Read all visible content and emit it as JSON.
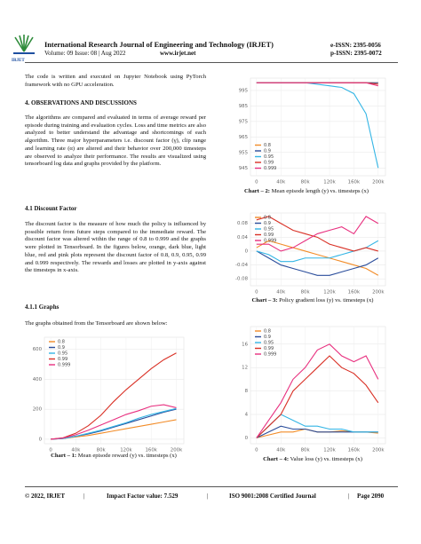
{
  "header": {
    "logo_text": "IRJET",
    "journal": "International Research Journal of Engineering and Technology (IRJET)",
    "volume": "Volume: 09 Issue: 08 | Aug 2022",
    "website": "www.irjet.net",
    "eissn": "e-ISSN: 2395-0056",
    "pissn": "p-ISSN: 2395-0072"
  },
  "left": {
    "intro": "The code is written and executed on Jupyter Notebook using PyTorch framework with no GPU acceleration.",
    "section4_title": "4. OBSERVATIONS AND DISCUSSIONS",
    "section4_text": "The algorithms are compared and evaluated in terms of average reward per episode during training and evaluation cycles. Loss and time metrics are also analyzed to better understand the advantage and shortcomings of each algorithm. Three major hyperparameters i.e. discount factor (γ), clip range and learning rate (α) are altered and their behavior over 200,000 timesteps are observed to analyze their performance. The results are visualized using tensorboard log data and graphs provided by the platform.",
    "section41_title": "4.1 Discount Factor",
    "section41_text": "The discount factor is the measure of how much the policy is influenced by possible return from future steps compared to the immediate reward. The discount factor was altered within the range of 0.8 to 0.999 and the graphs were plotted in Tensorboard. In the figures below, orange, dark blue, light blue, red and pink plots represent the discount factor of 0.8, 0.9, 0.95, 0.99 and 0.999 respectively. The rewards and losses are plotted in y-axis against the timesteps in x-axis.",
    "section411_title": "4.1.1 Graphs",
    "graphs_intro": "The graphs obtained from the Tensorboard are shown below:"
  },
  "chart_data": [
    {
      "type": "line",
      "caption_label": "Chart – 1:",
      "caption_text": "Mean episode reward (y) vs. timesteps (x)",
      "x": [
        0,
        20000,
        40000,
        60000,
        80000,
        100000,
        120000,
        140000,
        160000,
        180000,
        200000
      ],
      "xlim": [
        -10000,
        212000
      ],
      "xticks": [
        0,
        {
          "value": 40000,
          "label": "40k"
        },
        {
          "value": 80000,
          "label": "80k"
        },
        {
          "value": 120000,
          "label": "120k"
        },
        {
          "value": 160000,
          "label": "160k"
        },
        {
          "value": 200000,
          "label": "200k"
        }
      ],
      "ylim": [
        -30,
        680
      ],
      "yticks": [
        0,
        200,
        400,
        600
      ],
      "grid": true,
      "legend": "top-left",
      "series": [
        {
          "name": "0.8",
          "color": "#f28c28",
          "values": [
            0,
            5,
            15,
            25,
            40,
            55,
            70,
            85,
            100,
            115,
            130
          ]
        },
        {
          "name": "0.9",
          "color": "#2a4d9b",
          "values": [
            0,
            5,
            20,
            35,
            55,
            80,
            105,
            130,
            155,
            180,
            200
          ]
        },
        {
          "name": "0.95",
          "color": "#33b5e5",
          "values": [
            0,
            5,
            20,
            40,
            60,
            85,
            110,
            140,
            165,
            185,
            205
          ]
        },
        {
          "name": "0.99",
          "color": "#d93025",
          "values": [
            0,
            10,
            40,
            90,
            160,
            250,
            330,
            400,
            470,
            530,
            575
          ]
        },
        {
          "name": "0.999",
          "color": "#e8307f",
          "values": [
            0,
            8,
            30,
            60,
            95,
            130,
            165,
            190,
            220,
            230,
            210
          ]
        }
      ]
    },
    {
      "type": "line",
      "caption_label": "Chart – 2:",
      "caption_text": "Mean episode length (y) vs. timesteps (x)",
      "x": [
        0,
        20000,
        40000,
        60000,
        80000,
        100000,
        120000,
        140000,
        160000,
        180000,
        200000
      ],
      "xlim": [
        -10000,
        212000
      ],
      "xticks": [
        0,
        {
          "value": 40000,
          "label": "40k"
        },
        {
          "value": 80000,
          "label": "80k"
        },
        {
          "value": 120000,
          "label": "120k"
        },
        {
          "value": 160000,
          "label": "160k"
        },
        {
          "value": 200000,
          "label": "200k"
        }
      ],
      "ylim": [
        940,
        1003
      ],
      "yticks": [
        945,
        955,
        965,
        975,
        985,
        995
      ],
      "grid": true,
      "legend": "bottom-left",
      "series": [
        {
          "name": "0.8",
          "color": "#f28c28",
          "values": [
            1000,
            1000,
            1000,
            1000,
            1000,
            1000,
            1000,
            1000,
            1000,
            1000,
            1000
          ]
        },
        {
          "name": "0.9",
          "color": "#2a4d9b",
          "values": [
            1000,
            1000,
            1000,
            1000,
            1000,
            1000,
            1000,
            1000,
            1000,
            1000,
            1000
          ]
        },
        {
          "name": "0.95",
          "color": "#33b5e5",
          "values": [
            1000,
            1000,
            1000,
            1000,
            1000,
            999,
            998,
            997,
            993,
            980,
            945
          ]
        },
        {
          "name": "0.99",
          "color": "#d93025",
          "values": [
            1000,
            1000,
            1000,
            1000,
            1000,
            1000,
            1000,
            1000,
            1000,
            1000,
            999
          ]
        },
        {
          "name": "0.999",
          "color": "#e8307f",
          "values": [
            1000,
            1000,
            1000,
            1000,
            1000,
            1000,
            1000,
            1000,
            1000,
            1000,
            998
          ]
        }
      ]
    },
    {
      "type": "line",
      "caption_label": "Chart – 3:",
      "caption_text": "Policy gradient loss (y) vs. timesteps (x)",
      "x": [
        0,
        20000,
        40000,
        60000,
        80000,
        100000,
        120000,
        140000,
        160000,
        180000,
        200000
      ],
      "xlim": [
        -10000,
        212000
      ],
      "xticks": [
        0,
        {
          "value": 40000,
          "label": "40k"
        },
        {
          "value": 80000,
          "label": "80k"
        },
        {
          "value": 120000,
          "label": "120k"
        },
        {
          "value": 160000,
          "label": "160k"
        },
        {
          "value": 200000,
          "label": "200k"
        }
      ],
      "ylim": [
        -0.1,
        0.11
      ],
      "yticks": [
        -0.08,
        -0.04,
        0,
        0.04,
        0.08
      ],
      "grid": true,
      "legend": "top-left",
      "series": [
        {
          "name": "0.8",
          "color": "#f28c28",
          "values": [
            0.01,
            0.03,
            0.02,
            0.01,
            0,
            -0.01,
            -0.02,
            -0.03,
            -0.04,
            -0.05,
            -0.07
          ]
        },
        {
          "name": "0.9",
          "color": "#2a4d9b",
          "values": [
            0,
            -0.02,
            -0.04,
            -0.05,
            -0.06,
            -0.07,
            -0.07,
            -0.06,
            -0.05,
            -0.04,
            -0.02
          ]
        },
        {
          "name": "0.95",
          "color": "#33b5e5",
          "values": [
            0,
            -0.01,
            -0.03,
            -0.03,
            -0.02,
            -0.02,
            -0.02,
            -0.01,
            0,
            0.01,
            0.03
          ]
        },
        {
          "name": "0.99",
          "color": "#d93025",
          "values": [
            0.09,
            0.1,
            0.08,
            0.06,
            0.05,
            0.04,
            0.02,
            0.01,
            0,
            0.01,
            0
          ]
        },
        {
          "name": "0.999",
          "color": "#e8307f",
          "values": [
            0.02,
            0.02,
            0,
            0.01,
            0.03,
            0.05,
            0.06,
            0.07,
            0.05,
            0.1,
            0.08
          ]
        }
      ]
    },
    {
      "type": "line",
      "caption_label": "Chart – 4:",
      "caption_text": "Value loss (y) vs. timesteps (x)",
      "x": [
        0,
        20000,
        40000,
        60000,
        80000,
        100000,
        120000,
        140000,
        160000,
        180000,
        200000
      ],
      "xlim": [
        -10000,
        212000
      ],
      "xticks": [
        0,
        {
          "value": 40000,
          "label": "40k"
        },
        {
          "value": 80000,
          "label": "80k"
        },
        {
          "value": 120000,
          "label": "120k"
        },
        {
          "value": 160000,
          "label": "160k"
        },
        {
          "value": 200000,
          "label": "200k"
        }
      ],
      "ylim": [
        -1,
        19
      ],
      "yticks": [
        0,
        4,
        8,
        12,
        16
      ],
      "grid": true,
      "legend": "top-left",
      "series": [
        {
          "name": "0.8",
          "color": "#f28c28",
          "values": [
            0,
            0.5,
            1,
            1,
            1.5,
            1,
            1,
            1.2,
            1,
            1,
            0.8
          ]
        },
        {
          "name": "0.9",
          "color": "#2a4d9b",
          "values": [
            0,
            1,
            2,
            1.5,
            1.5,
            1,
            1,
            1,
            1,
            1,
            1
          ]
        },
        {
          "name": "0.95",
          "color": "#33b5e5",
          "values": [
            0,
            2,
            4,
            3,
            2,
            2,
            1.5,
            1.5,
            1,
            1,
            1
          ]
        },
        {
          "name": "0.99",
          "color": "#d93025",
          "values": [
            0,
            2,
            4,
            8,
            10,
            12,
            14,
            12,
            11,
            9,
            6
          ]
        },
        {
          "name": "0.999",
          "color": "#e8307f",
          "values": [
            0,
            3,
            6,
            10,
            12,
            15,
            16,
            14,
            13,
            14,
            10
          ]
        }
      ]
    }
  ],
  "footer": {
    "copyright": "© 2022, IRJET",
    "impact": "Impact Factor value: 7.529",
    "iso": "ISO 9001:2008 Certified Journal",
    "page": "Page 2090"
  }
}
